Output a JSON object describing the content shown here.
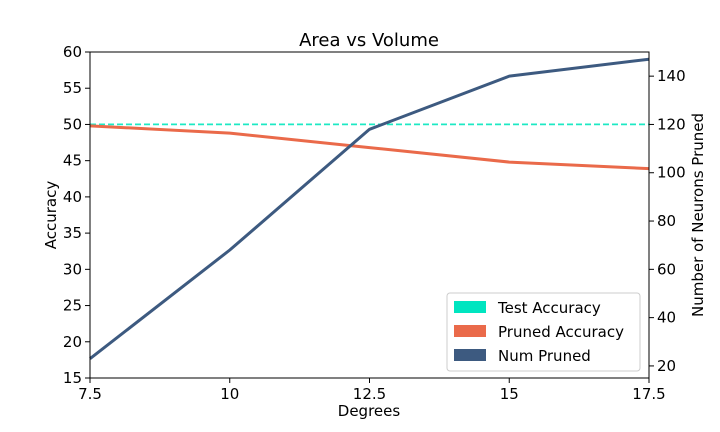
{
  "chart_data": {
    "type": "line",
    "title": "Area vs Volume",
    "xlabel": "Degrees",
    "ylabel": "Accuracy",
    "y2label": "Number of Neurons Pruned",
    "xlim": [
      7.5,
      17.5
    ],
    "ylim": [
      15,
      60
    ],
    "y2lim": [
      15,
      150
    ],
    "xticks": [
      "7.5",
      "10",
      "12.5",
      "15",
      "17.5"
    ],
    "yticks": [
      "15",
      "20",
      "25",
      "30",
      "35",
      "40",
      "45",
      "50",
      "55",
      "60"
    ],
    "y2ticks": [
      "20",
      "40",
      "60",
      "80",
      "100",
      "120",
      "140"
    ],
    "grid": false,
    "legend_position": "lower-right",
    "x": [
      7.5,
      10,
      12.5,
      15,
      17.5
    ],
    "series": [
      {
        "name": "Test Accuracy",
        "axis": "left",
        "style": "dashed",
        "color": "#1de9c4",
        "legend_color": "#00e5c0",
        "values": [
          50,
          50,
          50,
          50,
          50
        ]
      },
      {
        "name": "Pruned Accuracy",
        "axis": "left",
        "style": "solid",
        "color": "#ea6a4a",
        "legend_color": "#ea6a4a",
        "values": [
          49.8,
          48.8,
          46.8,
          44.8,
          43.9
        ]
      },
      {
        "name": "Num Pruned",
        "axis": "right",
        "style": "solid",
        "color": "#3d5a80",
        "legend_color": "#3d5a80",
        "values": [
          23,
          68,
          118,
          140,
          147
        ]
      }
    ]
  }
}
